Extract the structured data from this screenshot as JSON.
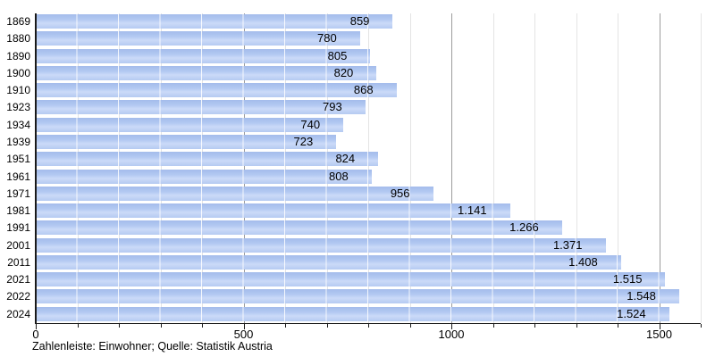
{
  "chart_data": {
    "type": "bar",
    "orientation": "horizontal",
    "categories": [
      "1869",
      "1880",
      "1890",
      "1900",
      "1910",
      "1923",
      "1934",
      "1939",
      "1951",
      "1961",
      "1971",
      "1981",
      "1991",
      "2001",
      "2011",
      "2021",
      "2022",
      "2024"
    ],
    "values": [
      859,
      780,
      805,
      820,
      868,
      793,
      740,
      723,
      824,
      808,
      956,
      1141,
      1266,
      1371,
      1408,
      1515,
      1548,
      1524
    ],
    "value_labels": [
      "859",
      "780",
      "805",
      "820",
      "868",
      "793",
      "740",
      "723",
      "824",
      "808",
      "956",
      "1.141",
      "1.266",
      "1.371",
      "1.408",
      "1.515",
      "1.548",
      "1.524"
    ],
    "xlim": [
      0,
      1600
    ],
    "x_major_ticks": [
      0,
      500,
      1000,
      1500
    ],
    "x_major_tick_labels": [
      "0",
      "500",
      "1000",
      "1500"
    ],
    "x_minor_tick_step": 100,
    "grid": true,
    "legend_position": "none",
    "title": "",
    "xlabel": "",
    "ylabel": "",
    "caption": "Zahlenleiste: Einwohner; Quelle: Statistik Austria",
    "colors": {
      "bar_fill": "#b3c9f2",
      "bar_highlight": "#cbdaf8",
      "bar_segment_separator": "#ffffff",
      "grid_minor": "#e4e4e4",
      "grid_major": "#9c9c9c",
      "axis": "#1a1a1a",
      "text": "#000000",
      "background": "#ffffff"
    }
  }
}
